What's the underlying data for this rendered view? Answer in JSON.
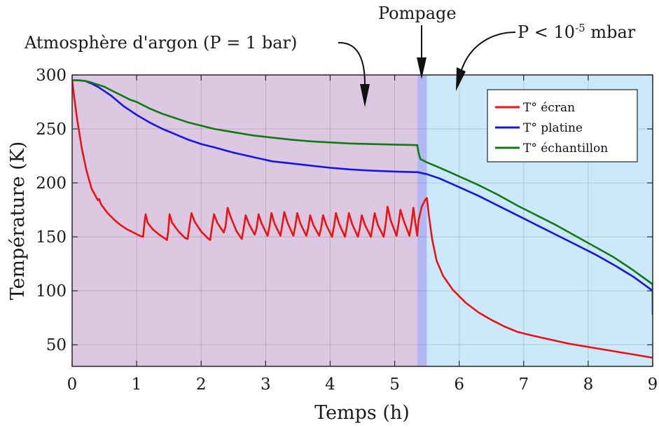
{
  "chart_data": {
    "type": "line",
    "xlabel": "Temps (h)",
    "ylabel": "Température (K)",
    "xlim": [
      0,
      9
    ],
    "ylim": [
      30,
      300
    ],
    "xticks": [
      0,
      1,
      2,
      3,
      4,
      5,
      6,
      7,
      8,
      9
    ],
    "yticks": [
      50,
      100,
      150,
      200,
      250,
      300
    ],
    "grid": true,
    "legend_position": "top-right",
    "regions": [
      {
        "label": "Atmosphère d'argon (P = 1 bar)",
        "x_start": 0,
        "x_end": 5.35,
        "color": "#dcc9e1"
      },
      {
        "label": "Pompage",
        "x_start": 5.35,
        "x_end": 5.5,
        "color": "#b3b8f2"
      },
      {
        "label_main": "P < 10",
        "label_exp": "-5",
        "label_unit": " mbar",
        "x_start": 5.5,
        "x_end": 9,
        "color": "#cbe9fb"
      }
    ],
    "series": [
      {
        "name": "T° écran",
        "color": "#ee1111",
        "points": [
          [
            0,
            296
          ],
          [
            0.03,
            280
          ],
          [
            0.08,
            258
          ],
          [
            0.15,
            232
          ],
          [
            0.22,
            212
          ],
          [
            0.3,
            195
          ],
          [
            0.38,
            186
          ],
          [
            0.4,
            184
          ],
          [
            0.42,
            185
          ],
          [
            0.45,
            180
          ],
          [
            0.55,
            172
          ],
          [
            0.65,
            166
          ],
          [
            0.75,
            161
          ],
          [
            0.85,
            157
          ],
          [
            0.95,
            154
          ],
          [
            1.05,
            151
          ],
          [
            1.1,
            150
          ],
          [
            1.12,
            162
          ],
          [
            1.14,
            171
          ],
          [
            1.17,
            163
          ],
          [
            1.25,
            157
          ],
          [
            1.35,
            152
          ],
          [
            1.45,
            148
          ],
          [
            1.47,
            147
          ],
          [
            1.49,
            155
          ],
          [
            1.51,
            171
          ],
          [
            1.55,
            163
          ],
          [
            1.65,
            155
          ],
          [
            1.75,
            149
          ],
          [
            1.79,
            148
          ],
          [
            1.82,
            160
          ],
          [
            1.85,
            172
          ],
          [
            1.9,
            164
          ],
          [
            2.0,
            155
          ],
          [
            2.1,
            149
          ],
          [
            2.14,
            147
          ],
          [
            2.17,
            160
          ],
          [
            2.2,
            171
          ],
          [
            2.25,
            163
          ],
          [
            2.35,
            154
          ],
          [
            2.38,
            160
          ],
          [
            2.41,
            177
          ],
          [
            2.46,
            168
          ],
          [
            2.55,
            155
          ],
          [
            2.63,
            148
          ],
          [
            2.66,
            158
          ],
          [
            2.69,
            170
          ],
          [
            2.74,
            162
          ],
          [
            2.83,
            152
          ],
          [
            2.86,
            158
          ],
          [
            2.89,
            171
          ],
          [
            2.94,
            162
          ],
          [
            3.03,
            151
          ],
          [
            3.06,
            160
          ],
          [
            3.09,
            172
          ],
          [
            3.14,
            162
          ],
          [
            3.23,
            151
          ],
          [
            3.26,
            162
          ],
          [
            3.29,
            173
          ],
          [
            3.34,
            163
          ],
          [
            3.43,
            151
          ],
          [
            3.46,
            160
          ],
          [
            3.49,
            172
          ],
          [
            3.54,
            162
          ],
          [
            3.63,
            151
          ],
          [
            3.66,
            158
          ],
          [
            3.69,
            170
          ],
          [
            3.74,
            161
          ],
          [
            3.83,
            151
          ],
          [
            3.86,
            158
          ],
          [
            3.89,
            170
          ],
          [
            3.94,
            161
          ],
          [
            4.03,
            150
          ],
          [
            4.06,
            160
          ],
          [
            4.09,
            172
          ],
          [
            4.14,
            162
          ],
          [
            4.23,
            150
          ],
          [
            4.26,
            160
          ],
          [
            4.29,
            172
          ],
          [
            4.34,
            162
          ],
          [
            4.43,
            150
          ],
          [
            4.46,
            158
          ],
          [
            4.49,
            170
          ],
          [
            4.54,
            161
          ],
          [
            4.63,
            150
          ],
          [
            4.66,
            160
          ],
          [
            4.69,
            172
          ],
          [
            4.74,
            161
          ],
          [
            4.83,
            150
          ],
          [
            4.86,
            162
          ],
          [
            4.89,
            178
          ],
          [
            4.94,
            165
          ],
          [
            5.03,
            151
          ],
          [
            5.06,
            162
          ],
          [
            5.09,
            175
          ],
          [
            5.14,
            165
          ],
          [
            5.23,
            151
          ],
          [
            5.26,
            162
          ],
          [
            5.29,
            177
          ],
          [
            5.32,
            163
          ],
          [
            5.35,
            151
          ],
          [
            5.37,
            165
          ],
          [
            5.42,
            178
          ],
          [
            5.48,
            185
          ],
          [
            5.5,
            186
          ],
          [
            5.53,
            170
          ],
          [
            5.58,
            148
          ],
          [
            5.65,
            128
          ],
          [
            5.75,
            114
          ],
          [
            5.9,
            101
          ],
          [
            6.1,
            89
          ],
          [
            6.3,
            80
          ],
          [
            6.5,
            73
          ],
          [
            6.7,
            67
          ],
          [
            6.9,
            62
          ],
          [
            7.1,
            59
          ],
          [
            7.4,
            55
          ],
          [
            7.7,
            51
          ],
          [
            8.0,
            48
          ],
          [
            8.3,
            45
          ],
          [
            8.6,
            42
          ],
          [
            9.0,
            38
          ]
        ]
      },
      {
        "name": "T° platine",
        "color": "#1414ee",
        "points": [
          [
            0,
            295
          ],
          [
            0.1,
            295
          ],
          [
            0.2,
            294.5
          ],
          [
            0.3,
            292
          ],
          [
            0.4,
            289
          ],
          [
            0.5,
            285
          ],
          [
            0.6,
            281
          ],
          [
            0.7,
            276
          ],
          [
            0.8,
            271
          ],
          [
            0.9,
            267
          ],
          [
            1.0,
            263
          ],
          [
            1.2,
            256
          ],
          [
            1.4,
            250
          ],
          [
            1.6,
            245
          ],
          [
            1.8,
            240
          ],
          [
            2.0,
            236
          ],
          [
            2.2,
            233
          ],
          [
            2.5,
            228
          ],
          [
            2.8,
            224
          ],
          [
            3.1,
            220
          ],
          [
            3.4,
            218
          ],
          [
            3.7,
            216
          ],
          [
            4.0,
            214
          ],
          [
            4.3,
            212.5
          ],
          [
            4.6,
            211.5
          ],
          [
            5.0,
            210.5
          ],
          [
            5.3,
            210
          ],
          [
            5.35,
            210
          ],
          [
            5.5,
            208
          ],
          [
            5.7,
            204
          ],
          [
            6.0,
            196
          ],
          [
            6.3,
            188
          ],
          [
            6.6,
            179
          ],
          [
            6.9,
            170
          ],
          [
            7.2,
            161
          ],
          [
            7.5,
            152
          ],
          [
            7.8,
            143
          ],
          [
            8.1,
            134
          ],
          [
            8.4,
            124
          ],
          [
            8.7,
            113
          ],
          [
            9.0,
            100
          ],
          [
            9.0,
            78
          ]
        ]
      },
      {
        "name": "T° échantillon",
        "color": "#117a11",
        "points": [
          [
            0,
            295
          ],
          [
            0.1,
            295
          ],
          [
            0.2,
            294.5
          ],
          [
            0.3,
            293
          ],
          [
            0.4,
            291
          ],
          [
            0.5,
            289
          ],
          [
            0.6,
            286
          ],
          [
            0.7,
            283
          ],
          [
            0.8,
            280
          ],
          [
            0.9,
            277
          ],
          [
            1.0,
            275
          ],
          [
            1.2,
            269
          ],
          [
            1.4,
            264
          ],
          [
            1.6,
            260
          ],
          [
            1.8,
            256
          ],
          [
            2.0,
            253
          ],
          [
            2.2,
            250
          ],
          [
            2.5,
            247
          ],
          [
            2.8,
            244
          ],
          [
            3.1,
            242
          ],
          [
            3.4,
            240
          ],
          [
            3.7,
            238.5
          ],
          [
            4.0,
            237.5
          ],
          [
            4.3,
            236.5
          ],
          [
            4.6,
            236
          ],
          [
            5.0,
            235.5
          ],
          [
            5.3,
            235
          ],
          [
            5.35,
            235
          ],
          [
            5.37,
            228
          ],
          [
            5.4,
            222
          ],
          [
            5.5,
            219
          ],
          [
            5.7,
            214
          ],
          [
            6.0,
            206
          ],
          [
            6.3,
            198
          ],
          [
            6.6,
            189
          ],
          [
            6.9,
            179
          ],
          [
            7.2,
            170
          ],
          [
            7.5,
            161
          ],
          [
            7.8,
            151
          ],
          [
            8.1,
            141
          ],
          [
            8.4,
            131
          ],
          [
            8.7,
            119
          ],
          [
            9.0,
            106
          ],
          [
            9.0,
            89
          ]
        ]
      }
    ]
  }
}
